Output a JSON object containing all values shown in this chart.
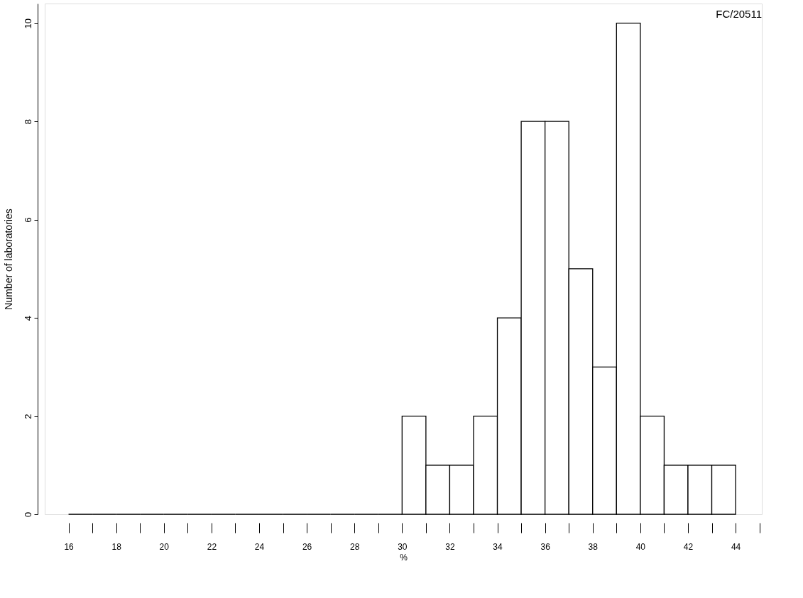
{
  "chart_data": {
    "type": "histogram",
    "bins": [
      16,
      17,
      18,
      19,
      20,
      21,
      22,
      23,
      24,
      25,
      26,
      27,
      28,
      29,
      30,
      31,
      32,
      33,
      34,
      35,
      36,
      37,
      38,
      39,
      40,
      41,
      42,
      43,
      44
    ],
    "values": [
      0,
      0,
      0,
      0,
      0,
      0,
      0,
      0,
      0,
      0,
      0,
      0,
      0,
      0,
      2,
      1,
      1,
      2,
      4,
      8,
      8,
      5,
      3,
      10,
      2,
      1,
      1,
      1
    ],
    "xlabel": "%",
    "ylabel": "Number of laboratories",
    "annotations": [
      "FC/20511"
    ],
    "xlim": [
      15,
      45.1
    ],
    "ylim": [
      0,
      10.4
    ],
    "xticks": [
      16,
      {
        "value": 17,
        "label": null
      },
      18,
      {
        "value": 19,
        "label": null
      },
      20,
      {
        "value": 21,
        "label": null
      },
      22,
      {
        "value": 23,
        "label": null
      },
      24,
      {
        "value": 25,
        "label": null
      },
      26,
      {
        "value": 27,
        "label": null
      },
      28,
      {
        "value": 29,
        "label": null
      },
      30,
      {
        "value": 31,
        "label": null
      },
      32,
      {
        "value": 33,
        "label": null
      },
      34,
      {
        "value": 35,
        "label": null
      },
      36,
      {
        "value": 37,
        "label": null
      },
      38,
      {
        "value": 39,
        "label": null
      },
      40,
      {
        "value": 41,
        "label": null
      },
      42,
      {
        "value": 43,
        "label": null
      },
      44,
      {
        "value": 45,
        "label": null
      }
    ],
    "yticks": [
      0,
      2,
      4,
      6,
      8,
      10
    ],
    "grid": false
  }
}
